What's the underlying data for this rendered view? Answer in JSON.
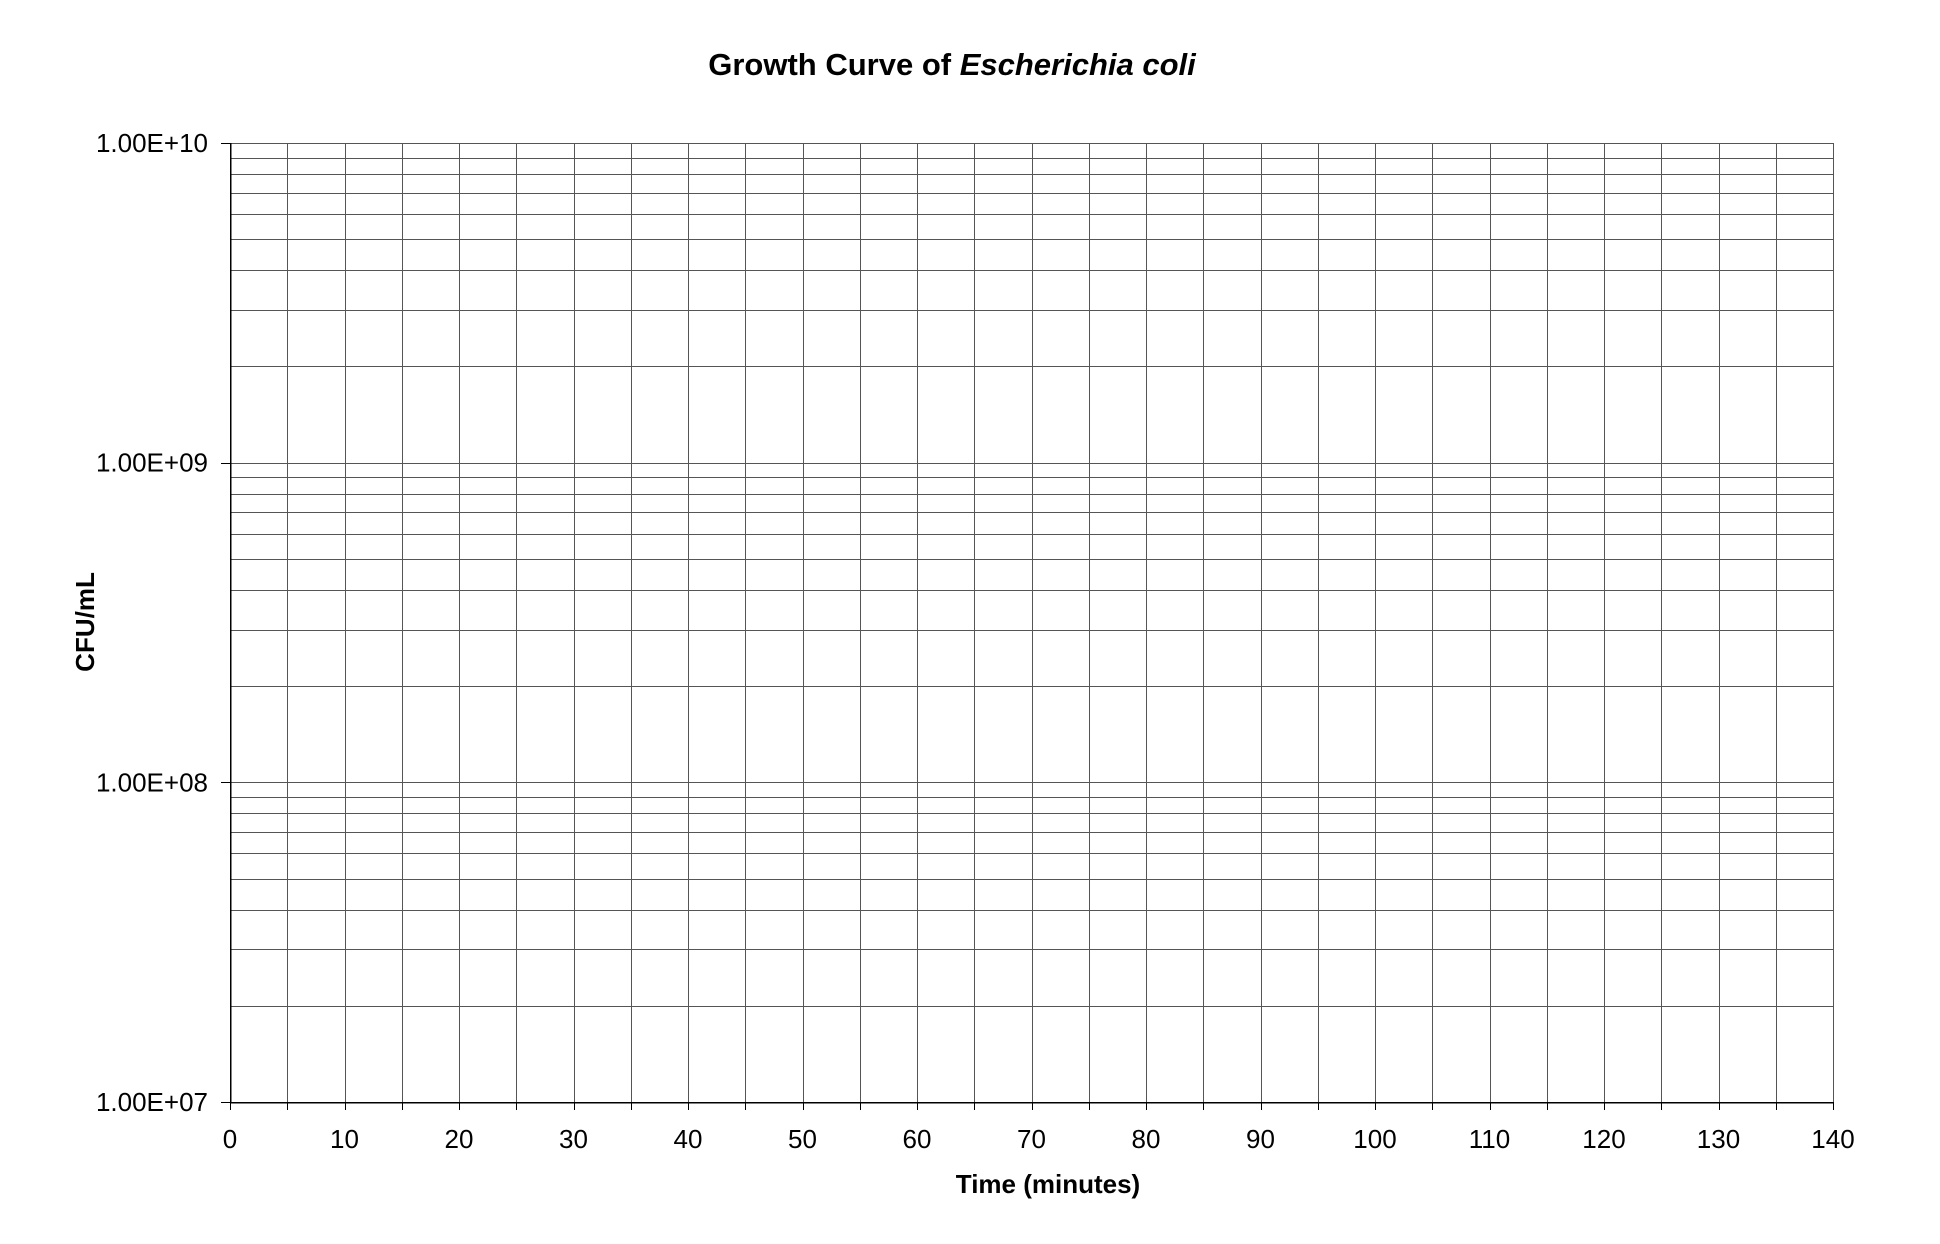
{
  "chart_data": {
    "type": "scatter",
    "title_prefix": "Growth Curve of ",
    "title_species": "Escherichia coli",
    "xlabel": "Time (minutes)",
    "ylabel": "CFU/mL",
    "xlim": [
      0,
      140
    ],
    "x_major_ticks": [
      "0",
      "10",
      "20",
      "30",
      "40",
      "50",
      "60",
      "70",
      "80",
      "90",
      "100",
      "110",
      "120",
      "130",
      "140"
    ],
    "x_minor_step": 5,
    "ylim": [
      10000000,
      10000000000
    ],
    "y_scale": "log",
    "y_major_ticks": [
      "1.00E+07",
      "1.00E+08",
      "1.00E+09",
      "1.00E+10"
    ],
    "grid": true,
    "series": []
  }
}
